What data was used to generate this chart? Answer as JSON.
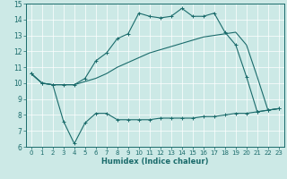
{
  "xlabel": "Humidex (Indice chaleur)",
  "xlim": [
    -0.5,
    23.5
  ],
  "ylim": [
    6,
    15
  ],
  "xticks": [
    0,
    1,
    2,
    3,
    4,
    5,
    6,
    7,
    8,
    9,
    10,
    11,
    12,
    13,
    14,
    15,
    16,
    17,
    18,
    19,
    20,
    21,
    22,
    23
  ],
  "yticks": [
    6,
    7,
    8,
    9,
    10,
    11,
    12,
    13,
    14,
    15
  ],
  "bg_color": "#cce9e6",
  "line_color": "#1a6b6b",
  "line1_x": [
    0,
    1,
    2,
    3,
    4,
    5,
    6,
    7,
    8,
    9,
    10,
    11,
    12,
    13,
    14,
    15,
    16,
    17,
    18,
    19,
    20,
    21,
    22,
    23
  ],
  "line1_y": [
    10.6,
    10.0,
    9.9,
    7.6,
    6.2,
    7.5,
    8.1,
    8.1,
    7.7,
    7.7,
    7.7,
    7.7,
    7.8,
    7.8,
    7.8,
    7.8,
    7.9,
    7.9,
    8.0,
    8.1,
    8.1,
    8.2,
    8.3,
    8.4
  ],
  "line2_x": [
    0,
    1,
    2,
    3,
    4,
    5,
    6,
    7,
    8,
    9,
    10,
    11,
    12,
    13,
    14,
    15,
    16,
    17,
    18,
    19,
    20,
    21,
    22,
    23
  ],
  "line2_y": [
    10.6,
    10.0,
    9.9,
    9.9,
    9.9,
    10.3,
    11.4,
    11.9,
    12.8,
    13.1,
    14.4,
    14.2,
    14.1,
    14.2,
    14.7,
    14.2,
    14.2,
    14.4,
    13.2,
    12.4,
    10.4,
    8.2,
    8.3,
    8.4
  ],
  "line3_x": [
    0,
    1,
    2,
    3,
    4,
    5,
    6,
    7,
    8,
    9,
    10,
    11,
    12,
    13,
    14,
    15,
    16,
    17,
    18,
    19,
    20,
    21,
    22,
    23
  ],
  "line3_y": [
    10.6,
    10.0,
    9.9,
    9.9,
    9.9,
    10.1,
    10.3,
    10.6,
    11.0,
    11.3,
    11.6,
    11.9,
    12.1,
    12.3,
    12.5,
    12.7,
    12.9,
    13.0,
    13.1,
    13.2,
    12.4,
    10.4,
    8.3,
    8.4
  ],
  "xlabel_fontsize": 6,
  "tick_fontsize": 5,
  "ylabel_fontsize": 5.5
}
